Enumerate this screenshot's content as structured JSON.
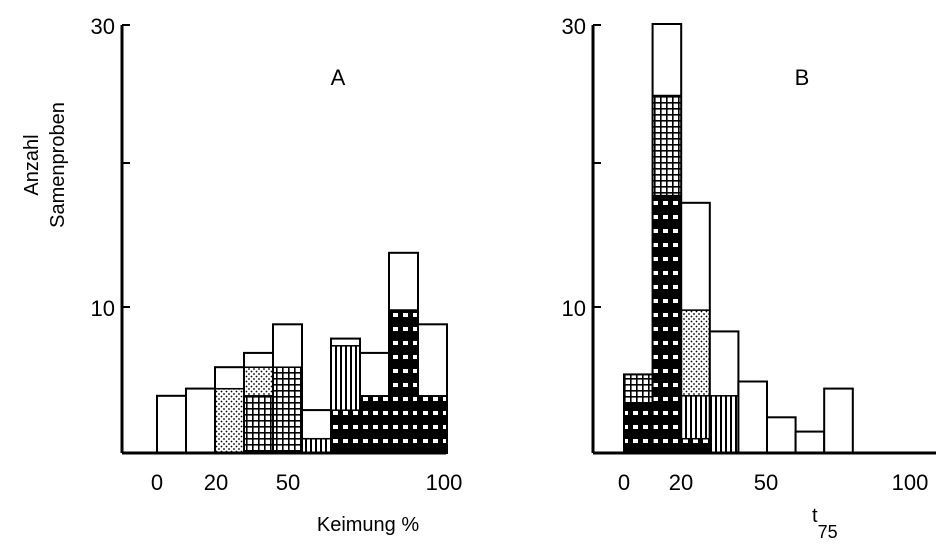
{
  "chart_data": [
    {
      "type": "bar",
      "panel_label": "A",
      "ylabel_lines": [
        "Anzahl",
        "Samenproben"
      ],
      "xlabel": "Keimung %",
      "xticks": [
        "0",
        "20",
        "50",
        "100"
      ],
      "yticks": [
        "10",
        "30"
      ],
      "ylim": [
        0,
        30
      ],
      "xlim": [
        -13,
        110
      ],
      "bin_width": 10,
      "bars": [
        {
          "x0": 0,
          "total": 4,
          "segments": [
            {
              "pattern": "open",
              "value": 4
            }
          ]
        },
        {
          "x0": 10,
          "total": 4.5,
          "segments": [
            {
              "pattern": "open",
              "value": 4.5
            }
          ]
        },
        {
          "x0": 20,
          "total": 6,
          "segments": [
            {
              "pattern": "dotted",
              "value": 4.5
            },
            {
              "pattern": "open",
              "value": 1.5
            }
          ]
        },
        {
          "x0": 30,
          "total": 7,
          "segments": [
            {
              "pattern": "grid",
              "value": 4
            },
            {
              "pattern": "dotted",
              "value": 2
            },
            {
              "pattern": "open",
              "value": 1
            }
          ]
        },
        {
          "x0": 40,
          "total": 9,
          "segments": [
            {
              "pattern": "grid",
              "value": 6
            },
            {
              "pattern": "open",
              "value": 3
            }
          ]
        },
        {
          "x0": 50,
          "total": 3,
          "segments": [
            {
              "pattern": "vertical",
              "value": 1
            },
            {
              "pattern": "open",
              "value": 2
            }
          ]
        },
        {
          "x0": 60,
          "total": 8,
          "segments": [
            {
              "pattern": "horizontal",
              "value": 3
            },
            {
              "pattern": "vertical",
              "value": 4.5
            },
            {
              "pattern": "open",
              "value": 0.5
            }
          ]
        },
        {
          "x0": 70,
          "total": 7,
          "segments": [
            {
              "pattern": "horizontal",
              "value": 4
            },
            {
              "pattern": "open",
              "value": 3
            }
          ]
        },
        {
          "x0": 80,
          "total": 14,
          "segments": [
            {
              "pattern": "horizontal",
              "value": 10
            },
            {
              "pattern": "open",
              "value": 4
            }
          ]
        },
        {
          "x0": 90,
          "total": 9,
          "segments": [
            {
              "pattern": "horizontal",
              "value": 4
            },
            {
              "pattern": "open",
              "value": 5
            }
          ]
        }
      ]
    },
    {
      "type": "bar",
      "panel_label": "B",
      "xlabel": "t",
      "xlabel_sub": "75",
      "xticks": [
        "0",
        "20",
        "50",
        "100"
      ],
      "yticks": [
        "10",
        "30"
      ],
      "ylim": [
        0,
        30
      ],
      "xlim": [
        -13,
        110
      ],
      "bin_width": 10,
      "bars": [
        {
          "x0": 0,
          "total": 5.5,
          "segments": [
            {
              "pattern": "horizontal",
              "value": 3.5
            },
            {
              "pattern": "grid",
              "value": 2
            }
          ]
        },
        {
          "x0": 10,
          "total": 30,
          "segments": [
            {
              "pattern": "horizontal",
              "value": 18
            },
            {
              "pattern": "grid",
              "value": 7
            },
            {
              "pattern": "open",
              "value": 5
            }
          ]
        },
        {
          "x0": 20,
          "total": 17.5,
          "segments": [
            {
              "pattern": "horizontal",
              "value": 1
            },
            {
              "pattern": "vertical",
              "value": 3
            },
            {
              "pattern": "dotted",
              "value": 6
            },
            {
              "pattern": "open",
              "value": 7.5
            }
          ]
        },
        {
          "x0": 30,
          "total": 8.5,
          "segments": [
            {
              "pattern": "vertical",
              "value": 4
            },
            {
              "pattern": "open",
              "value": 4.5
            }
          ]
        },
        {
          "x0": 40,
          "total": 5,
          "segments": [
            {
              "pattern": "open",
              "value": 5
            }
          ]
        },
        {
          "x0": 50,
          "total": 2.5,
          "segments": [
            {
              "pattern": "open",
              "value": 2.5
            }
          ]
        },
        {
          "x0": 60,
          "total": 1.5,
          "segments": [
            {
              "pattern": "open",
              "value": 1.5
            }
          ]
        },
        {
          "x0": 70,
          "total": 4.5,
          "segments": [
            {
              "pattern": "open",
              "value": 4.5
            }
          ]
        }
      ]
    }
  ]
}
